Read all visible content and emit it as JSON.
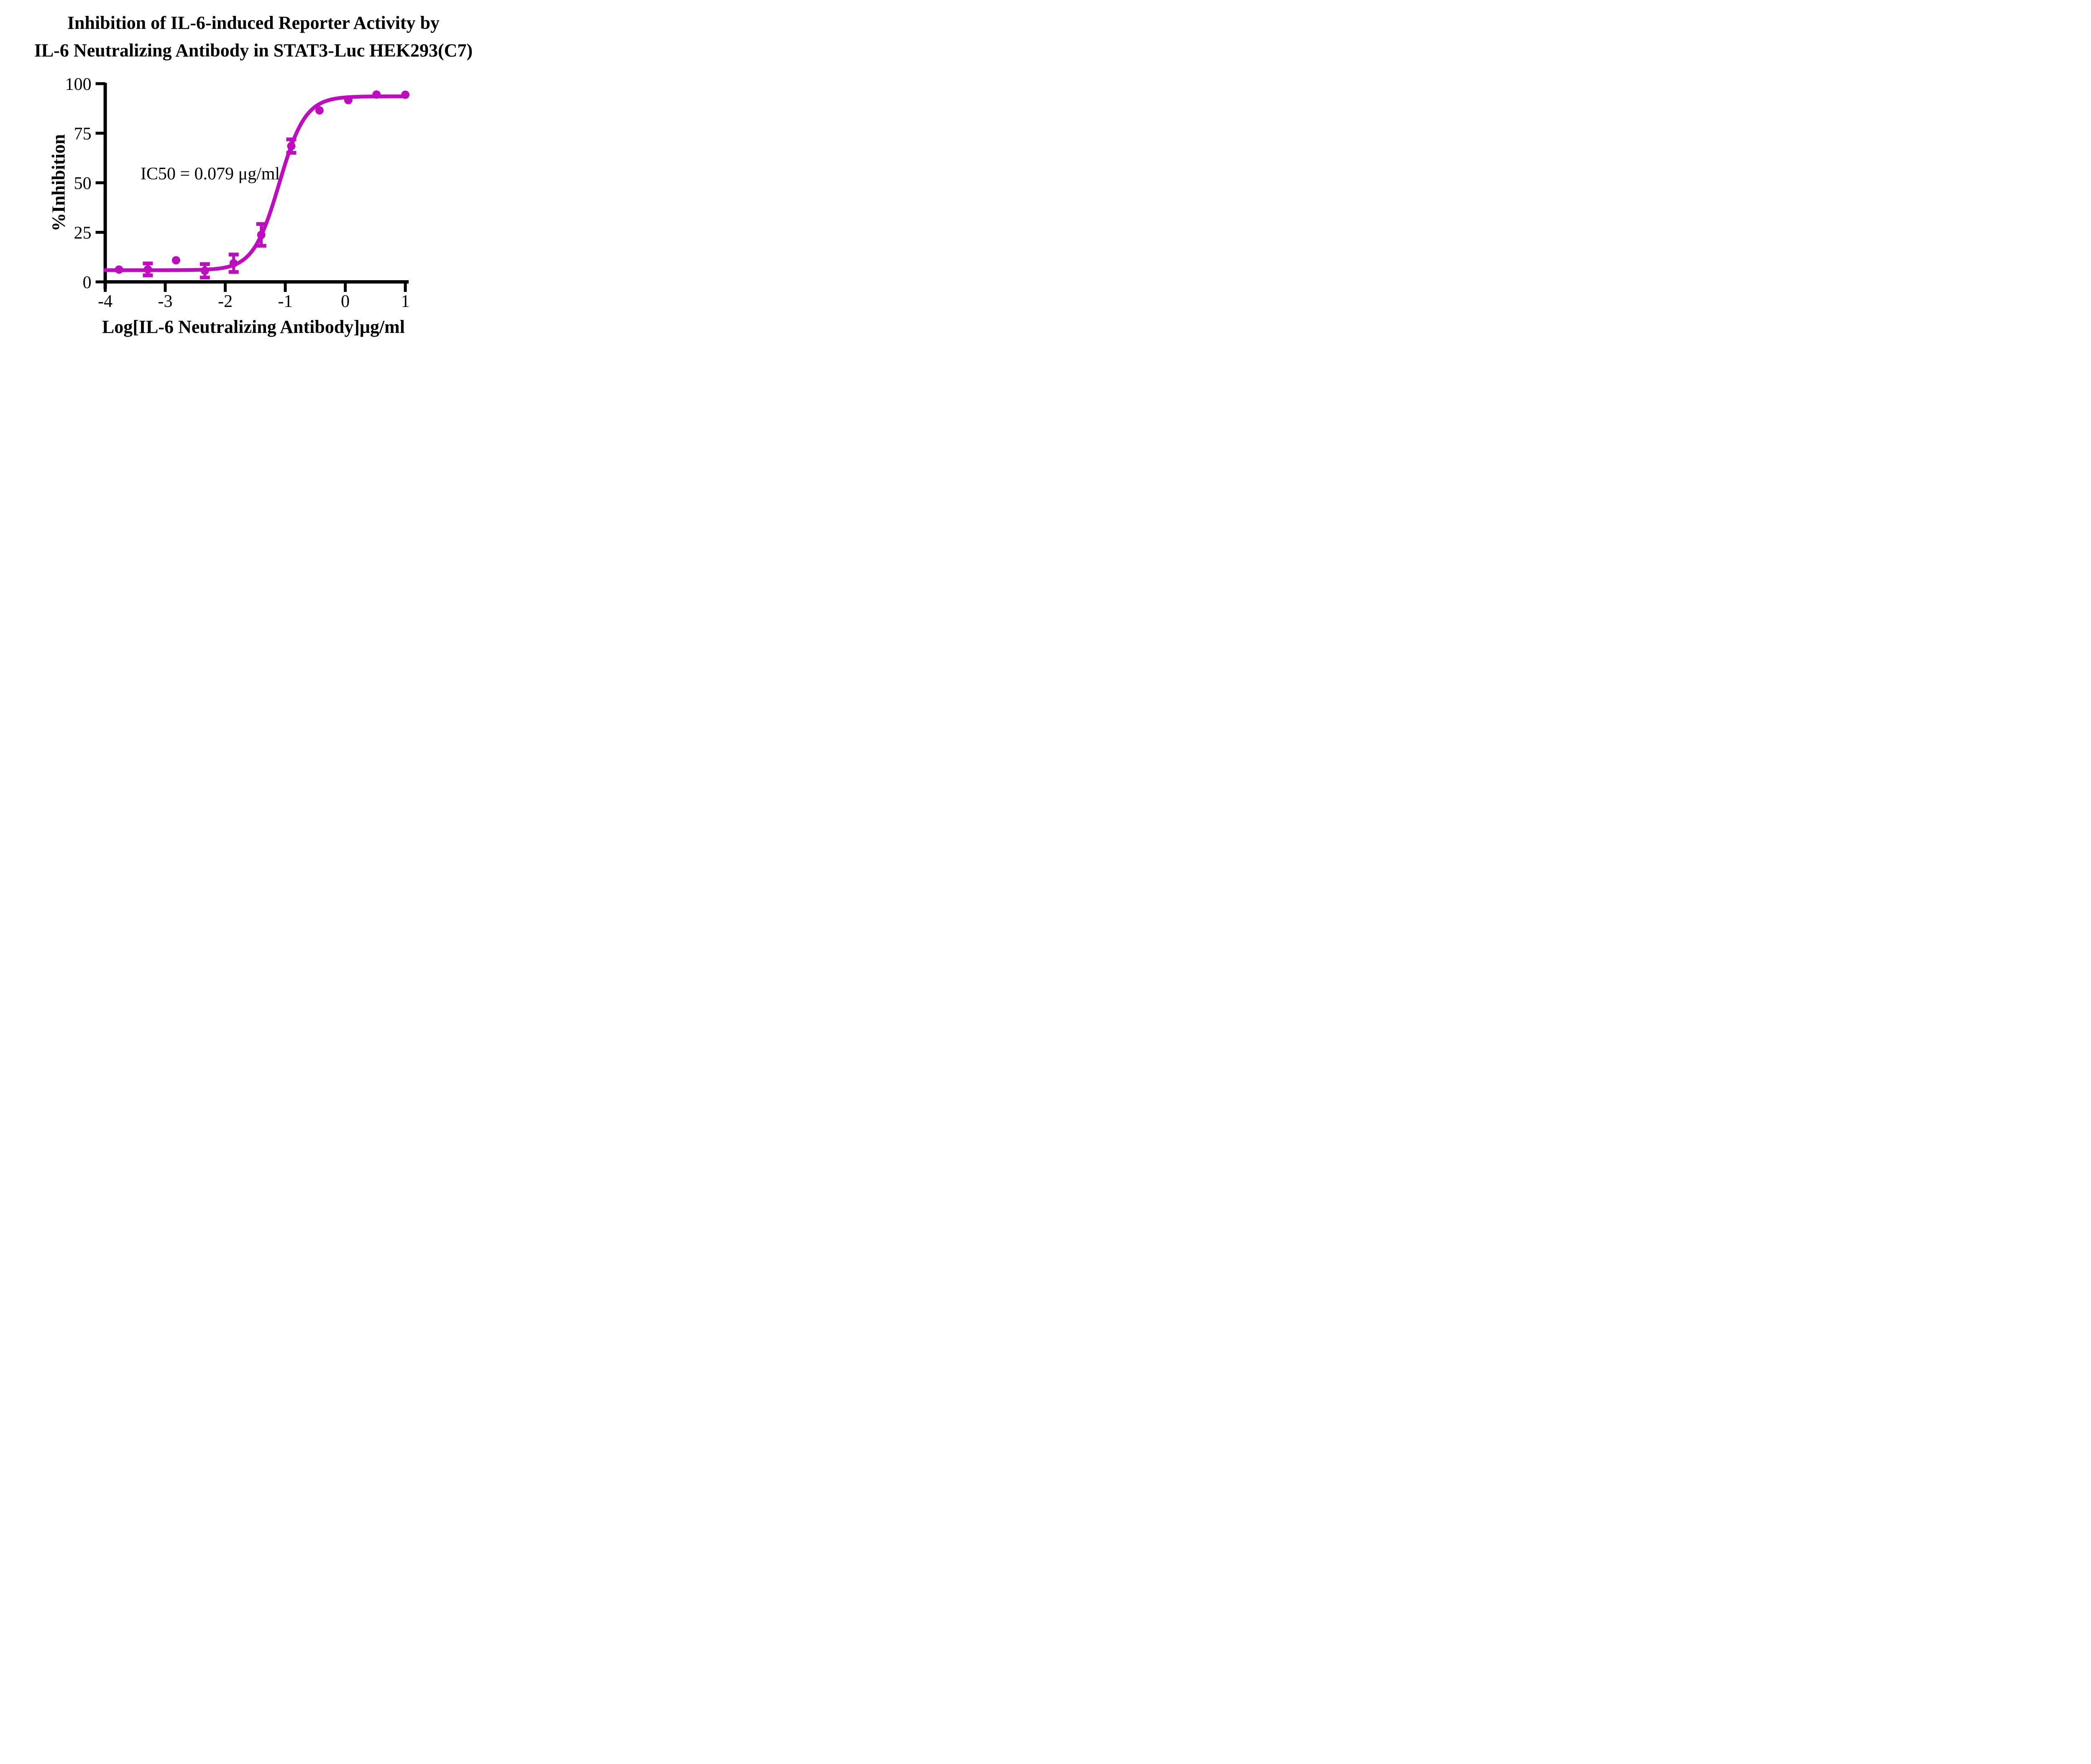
{
  "figure": {
    "title_line1": "Inhibition of IL-6-induced Reporter Activity by",
    "title_line2": "IL-6 Neutralizing Antibody in STAT3-Luc HEK293(C7)"
  },
  "chart_data": {
    "type": "scatter",
    "title": "Inhibition of IL-6-induced Reporter Activity by IL-6 Neutralizing Antibody in STAT3-Luc HEK293(C7)",
    "xlabel": "Log[IL-6 Neutralizing Antibody]μg/ml",
    "ylabel": "%Inhibition",
    "xlim": [
      -4,
      1
    ],
    "ylim": [
      0,
      100
    ],
    "x_ticks": [
      -4,
      -3,
      -2,
      -1,
      0,
      1
    ],
    "y_ticks": [
      0,
      25,
      50,
      75,
      100
    ],
    "grid": false,
    "legend": "none",
    "annotation": "IC50 = 0.079 μg/ml",
    "accent_color": "#BE0DBE",
    "axis_color": "#000000",
    "series": [
      {
        "name": "IL-6 Neutralizing Antibody",
        "color": "#BE0DBE",
        "marker": "circle",
        "points": [
          {
            "x": -3.77,
            "y": 6.2,
            "err": null
          },
          {
            "x": -3.29,
            "y": 6.3,
            "err": 3.0
          },
          {
            "x": -2.82,
            "y": 10.9,
            "err": null
          },
          {
            "x": -2.34,
            "y": 5.6,
            "err": 3.4
          },
          {
            "x": -1.86,
            "y": 9.4,
            "err": 4.4
          },
          {
            "x": -1.4,
            "y": 23.7,
            "err": 5.5
          },
          {
            "x": -0.9,
            "y": 68.5,
            "err": 3.4
          },
          {
            "x": -0.43,
            "y": 86.5,
            "err": null
          },
          {
            "x": 0.05,
            "y": 91.7,
            "err": null
          },
          {
            "x": 0.52,
            "y": 94.5,
            "err": null
          },
          {
            "x": 1.0,
            "y": 94.4,
            "err": null
          }
        ]
      }
    ],
    "fit_curve": {
      "model": "4PL",
      "bottom": 5.9,
      "top": 93.6,
      "log_ic50": -1.1,
      "hill_slope": 2.0,
      "x_start": -4,
      "x_end": 1
    }
  }
}
